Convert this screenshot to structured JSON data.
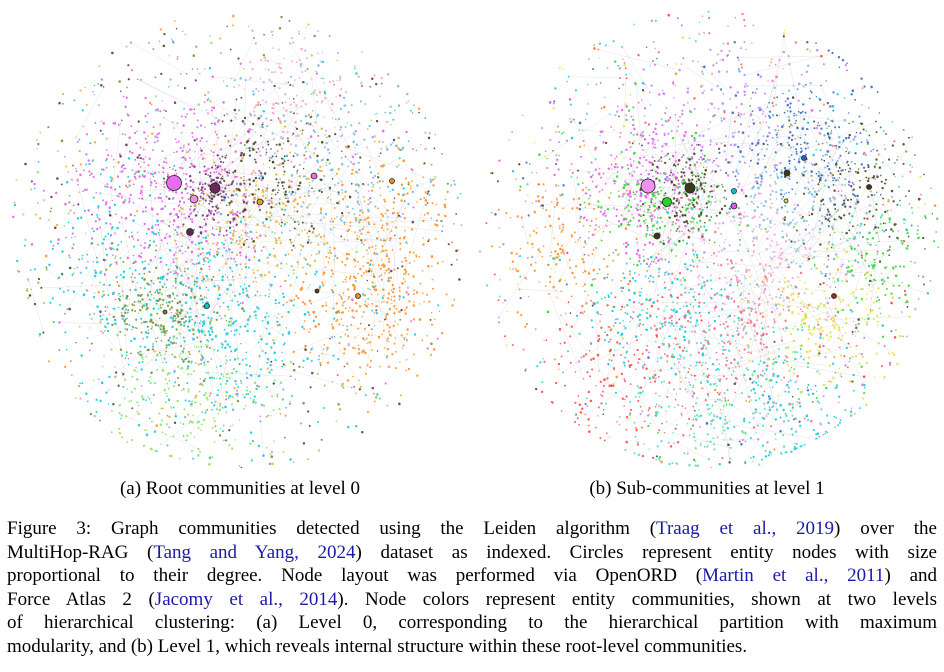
{
  "figure": {
    "subcaptions": {
      "a": "(a) Root communities at level 0",
      "b": "(b) Sub-communities at level 1"
    },
    "caption": {
      "line1": {
        "pre": "Figure 3: Graph communities detected using the Leiden algorithm (",
        "cite": "Traag et al., 2019",
        "post": ") over the"
      },
      "line2": {
        "pre": "MultiHop-RAG (",
        "cite": "Tang and Yang, 2024",
        "post": ") dataset as indexed. Circles represent entity nodes with size"
      },
      "line3": {
        "pre": "proportional to their degree. Node layout was performed via OpenORD (",
        "cite": "Martin et al., 2011",
        "post": ") and"
      },
      "line4": {
        "pre": "Force Atlas 2 (",
        "cite": "Jacomy et al., 2014",
        "post": "). Node colors represent entity communities, shown at two levels"
      },
      "line5": "of hierarchical clustering: (a) Level 0, corresponding to the hierarchical partition with maximum",
      "line6": "modularity, and (b) Level 1, which reveals internal structure within these root-level communities."
    }
  },
  "colors": {
    "citation": "#1a1aa6",
    "level0_palette": [
      "#e056e8",
      "#00c8d8",
      "#ff8c1a",
      "#6a8a2a",
      "#e0b030",
      "#6db8e0",
      "#8fe060",
      "#5a2a5a",
      "#3a3a1a",
      "#f0a0d0"
    ],
    "level1_palette": [
      "#e056e8",
      "#00c8d8",
      "#ff8c1a",
      "#2ad02a",
      "#e0e040",
      "#6db8e0",
      "#ff6080",
      "#3a3a1a",
      "#2a60c0",
      "#c080ff",
      "#ff4040",
      "#60e0b0",
      "#f0a0d0"
    ]
  }
}
